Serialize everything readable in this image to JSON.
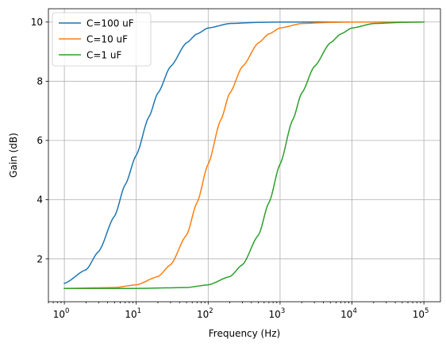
{
  "chart_data": {
    "type": "line",
    "title": "",
    "xlabel": "Frequency (Hz)",
    "ylabel": "Gain (dB)",
    "xscale": "log",
    "xlim": [
      0.6,
      170000
    ],
    "ylim": [
      0.55,
      10.45
    ],
    "xticks": [
      {
        "base": "10",
        "exp": "0",
        "value": 1
      },
      {
        "base": "10",
        "exp": "1",
        "value": 10
      },
      {
        "base": "10",
        "exp": "2",
        "value": 100
      },
      {
        "base": "10",
        "exp": "3",
        "value": 1000
      },
      {
        "base": "10",
        "exp": "4",
        "value": 10000
      },
      {
        "base": "10",
        "exp": "5",
        "value": 100000
      }
    ],
    "yticks": [
      "2",
      "4",
      "6",
      "8",
      "10"
    ],
    "grid": true,
    "legend_position": "top-left",
    "series": [
      {
        "name": "C=100 uF",
        "color": "#1f77b4",
        "x": [
          1,
          2,
          3,
          5,
          7,
          10,
          15,
          20,
          30,
          50,
          70,
          100,
          200,
          500,
          1000,
          10000,
          100000
        ],
        "y": [
          1.17,
          1.63,
          2.25,
          3.45,
          4.5,
          5.5,
          6.8,
          7.6,
          8.5,
          9.3,
          9.6,
          9.8,
          9.95,
          9.99,
          10.0,
          10.0,
          10.0
        ]
      },
      {
        "name": "C=10 uF",
        "color": "#ff7f0e",
        "x": [
          1,
          5,
          10,
          20,
          30,
          50,
          70,
          100,
          150,
          200,
          300,
          500,
          700,
          1000,
          2000,
          5000,
          10000,
          100000
        ],
        "y": [
          1.0,
          1.03,
          1.12,
          1.4,
          1.8,
          2.8,
          3.9,
          5.2,
          6.7,
          7.6,
          8.5,
          9.3,
          9.6,
          9.8,
          9.95,
          9.99,
          10.0,
          10.0
        ]
      },
      {
        "name": "C=1 uF",
        "color": "#2ca02c",
        "x": [
          1,
          10,
          50,
          100,
          200,
          300,
          500,
          700,
          1000,
          1500,
          2000,
          3000,
          5000,
          7000,
          10000,
          20000,
          50000,
          100000
        ],
        "y": [
          1.0,
          1.0,
          1.03,
          1.12,
          1.4,
          1.8,
          2.8,
          3.9,
          5.2,
          6.7,
          7.6,
          8.5,
          9.3,
          9.6,
          9.8,
          9.95,
          9.99,
          10.0
        ]
      }
    ]
  }
}
